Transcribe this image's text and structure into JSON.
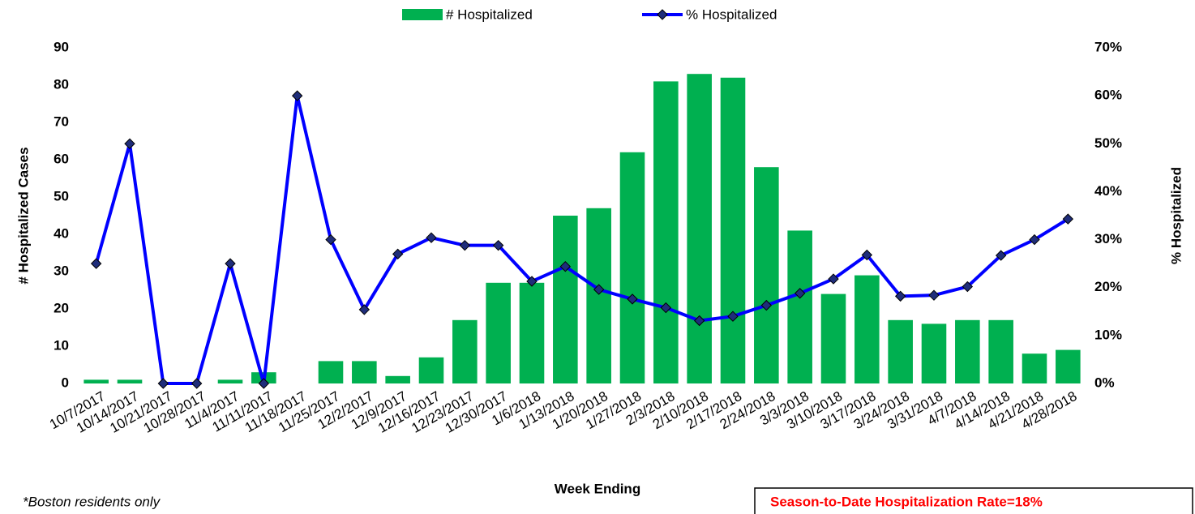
{
  "chart_data": {
    "type": "bar",
    "x_label": "Week Ending",
    "y_label": "# Hospitalized Cases",
    "y2_label": "% Hospitalized",
    "note": "*Boston residents only",
    "callout": "Season-to-Date Hospitalization Rate=18%",
    "callout_color": "#ff0000",
    "categories": [
      "10/7/2017",
      "10/14/2017",
      "10/21/2017",
      "10/28/2017",
      "11/4/2017",
      "11/11/2017",
      "11/18/2017",
      "11/25/2017",
      "12/2/2017",
      "12/9/2017",
      "12/16/2017",
      "12/23/2017",
      "12/30/2017",
      "1/6/2018",
      "1/13/2018",
      "1/20/2018",
      "1/27/2018",
      "2/3/2018",
      "2/10/2018",
      "2/17/2018",
      "2/24/2018",
      "3/3/2018",
      "3/10/2018",
      "3/17/2018",
      "3/24/2018",
      "3/31/2018",
      "4/7/2018",
      "4/14/2018",
      "4/21/2018",
      "4/28/2018"
    ],
    "series": [
      {
        "name": "# Hospitalized",
        "type": "bar",
        "color": "#00b050",
        "values": [
          1,
          1,
          0,
          0,
          1,
          3,
          0,
          6,
          6,
          2,
          7,
          17,
          27,
          27,
          45,
          47,
          62,
          81,
          83,
          82,
          58,
          41,
          24,
          29,
          17,
          16,
          17,
          17,
          8,
          9
        ]
      },
      {
        "name": "% Hospitalized",
        "type": "line",
        "axis": "y2",
        "color": "#0000ff",
        "marker_color": "#1f2d7a",
        "values": [
          25,
          50,
          0,
          0,
          25,
          0,
          60,
          30,
          15.4,
          27,
          30.4,
          28.8,
          28.8,
          21.3,
          24.4,
          19.6,
          17.6,
          15.8,
          13.1,
          14,
          16.3,
          18.8,
          21.8,
          26.8,
          18.2,
          18.4,
          20.2,
          26.7,
          30,
          34.3
        ]
      }
    ],
    "ylim": [
      0,
      90
    ],
    "yticks": [
      0,
      10,
      20,
      30,
      40,
      50,
      60,
      70,
      80,
      90
    ],
    "y2lim": [
      0,
      70
    ],
    "y2ticks": [
      {
        "value": 0,
        "label": "0%"
      },
      {
        "value": 10,
        "label": "10%"
      },
      {
        "value": 20,
        "label": "20%"
      },
      {
        "value": 30,
        "label": "30%"
      },
      {
        "value": 40,
        "label": "40%"
      },
      {
        "value": 50,
        "label": "50%"
      },
      {
        "value": 60,
        "label": "60%"
      },
      {
        "value": 70,
        "label": "70%"
      }
    ],
    "grid": false
  }
}
